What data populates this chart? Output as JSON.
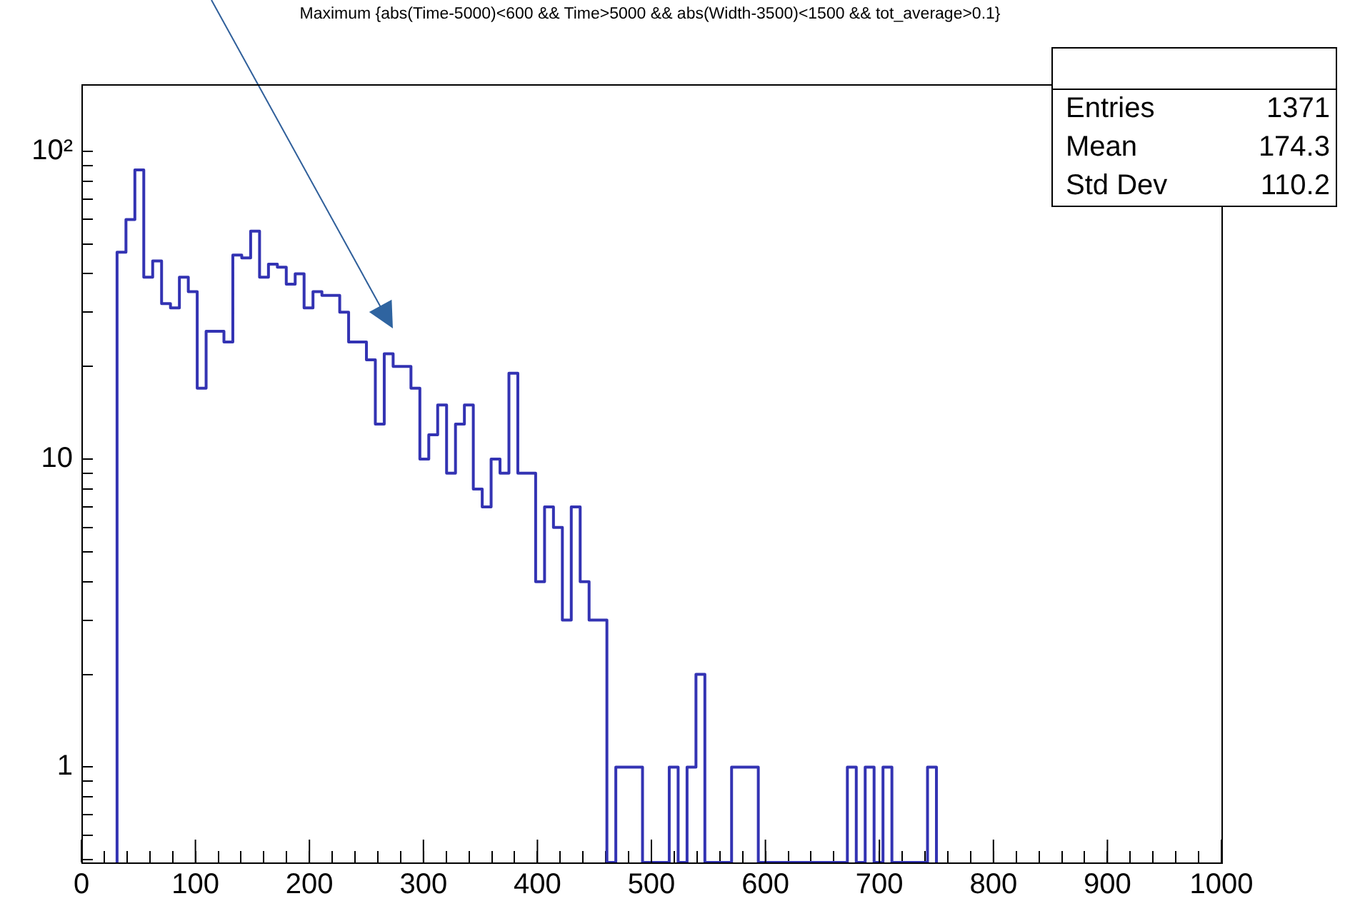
{
  "chart_data": {
    "type": "histogram",
    "title": "Maximum {abs(Time-5000)<600 && Time>5000 && abs(Width-3500)<1500 && tot_average>0.1}",
    "bins": [
      31.25,
      39.0625,
      46.875,
      54.6875,
      62.5,
      70.3125,
      78.125,
      85.9375,
      93.75,
      101.5625,
      109.375,
      117.1875,
      125,
      132.8125,
      140.625,
      148.4375,
      156.25,
      164.0625,
      171.875,
      179.6875,
      187.5,
      195.3125,
      203.125,
      210.9375,
      218.75,
      226.5625,
      234.375,
      242.1875,
      250,
      257.8125,
      265.625,
      273.4375,
      281.25,
      289.0625,
      296.875,
      304.6875,
      312.5,
      320.3125,
      328.125,
      335.9375,
      343.75,
      351.5625,
      359.375,
      367.1875,
      375,
      382.8125,
      390.625,
      398.4375,
      406.25,
      414.0625,
      421.875,
      429.6875,
      437.5,
      445.3125,
      453.125,
      460.9375,
      468.75,
      476.5625,
      484.375,
      492.1875,
      500,
      507.8125,
      515.625,
      523.4375,
      531.25,
      539.0625,
      546.875,
      554.6875,
      562.5,
      570.3125,
      578.125,
      585.9375,
      593.75,
      601.5625,
      609.375,
      617.1875,
      625,
      632.8125,
      640.625,
      648.4375,
      656.25,
      664.0625,
      671.875,
      679.6875,
      687.5,
      695.3125,
      703.125,
      710.9375,
      718.75,
      726.5625,
      734.375,
      742.1875,
      750
    ],
    "values": [
      47,
      60,
      87,
      39,
      44,
      32,
      31,
      39,
      35,
      17,
      26,
      26,
      24,
      46,
      45,
      55,
      39,
      43,
      42,
      37,
      40,
      31,
      35,
      34,
      34,
      30,
      24,
      24,
      21,
      13,
      22,
      20,
      20,
      17,
      10,
      12,
      15,
      9,
      13,
      15,
      8,
      7,
      10,
      9,
      19,
      9,
      9,
      4,
      7,
      6,
      3,
      7,
      4,
      3,
      3,
      null,
      1,
      1,
      1,
      null,
      null,
      null,
      1,
      null,
      1,
      2,
      null,
      null,
      null,
      1,
      1,
      1,
      null,
      null,
      null,
      null,
      null,
      null,
      null,
      null,
      null,
      null,
      1,
      null,
      1,
      null,
      1,
      null,
      null,
      null,
      null,
      1
    ],
    "color": "#3333b3",
    "log": "y",
    "grid": false,
    "legend": false,
    "xlim": [
      0,
      1000
    ],
    "ylim": [
      0.49,
      165
    ],
    "xticks": [
      0,
      {
        "value": 20,
        "label": null
      },
      {
        "value": 40,
        "label": null
      },
      {
        "value": 60,
        "label": null
      },
      {
        "value": 80,
        "label": null
      },
      100,
      {
        "value": 120,
        "label": null
      },
      {
        "value": 140,
        "label": null
      },
      {
        "value": 160,
        "label": null
      },
      {
        "value": 180,
        "label": null
      },
      200,
      {
        "value": 220,
        "label": null
      },
      {
        "value": 240,
        "label": null
      },
      {
        "value": 260,
        "label": null
      },
      {
        "value": 280,
        "label": null
      },
      300,
      {
        "value": 320,
        "label": null
      },
      {
        "value": 340,
        "label": null
      },
      {
        "value": 360,
        "label": null
      },
      {
        "value": 380,
        "label": null
      },
      400,
      {
        "value": 420,
        "label": null
      },
      {
        "value": 440,
        "label": null
      },
      {
        "value": 460,
        "label": null
      },
      {
        "value": 480,
        "label": null
      },
      500,
      {
        "value": 520,
        "label": null
      },
      {
        "value": 540,
        "label": null
      },
      {
        "value": 560,
        "label": null
      },
      {
        "value": 580,
        "label": null
      },
      600,
      {
        "value": 620,
        "label": null
      },
      {
        "value": 640,
        "label": null
      },
      {
        "value": 660,
        "label": null
      },
      {
        "value": 680,
        "label": null
      },
      700,
      {
        "value": 720,
        "label": null
      },
      {
        "value": 740,
        "label": null
      },
      {
        "value": 760,
        "label": null
      },
      {
        "value": 780,
        "label": null
      },
      800,
      {
        "value": 820,
        "label": null
      },
      {
        "value": 840,
        "label": null
      },
      {
        "value": 860,
        "label": null
      },
      {
        "value": 880,
        "label": null
      },
      900,
      {
        "value": 920,
        "label": null
      },
      {
        "value": 940,
        "label": null
      },
      {
        "value": 960,
        "label": null
      },
      {
        "value": 980,
        "label": null
      },
      1000
    ],
    "yticks": [
      {
        "value": 0.5,
        "label": null
      },
      {
        "value": 0.6,
        "label": null
      },
      {
        "value": 0.7,
        "label": null
      },
      {
        "value": 0.8,
        "label": null
      },
      {
        "value": 0.9,
        "label": null
      },
      1,
      {
        "value": 2,
        "label": null
      },
      {
        "value": 3,
        "label": null
      },
      {
        "value": 4,
        "label": null
      },
      {
        "value": 5,
        "label": null
      },
      {
        "value": 6,
        "label": null
      },
      {
        "value": 7,
        "label": null
      },
      {
        "value": 8,
        "label": null
      },
      {
        "value": 9,
        "label": null
      },
      10,
      {
        "value": 20,
        "label": null
      },
      {
        "value": 30,
        "label": null
      },
      {
        "value": 40,
        "label": null
      },
      {
        "value": 50,
        "label": null
      },
      {
        "value": 60,
        "label": null
      },
      {
        "value": 70,
        "label": null
      },
      {
        "value": 80,
        "label": null
      },
      {
        "value": 90,
        "label": null
      },
      {
        "value": 100,
        "label": "10²"
      }
    ],
    "annotations": [
      "Entries",
      "1371",
      "Mean",
      "174.3",
      "Std Dev",
      "110.2"
    ]
  }
}
